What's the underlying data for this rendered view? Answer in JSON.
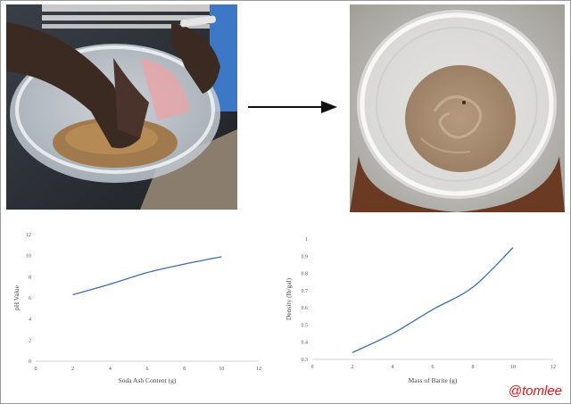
{
  "watermark": "@tomlee",
  "chart_data": [
    {
      "type": "line",
      "title": "",
      "xlabel": "Soda Ash Content (g)",
      "ylabel": "pH Value",
      "xlim": [
        0,
        12
      ],
      "ylim": [
        0,
        12
      ],
      "x_ticks": [
        0,
        2,
        4,
        6,
        8,
        10,
        12
      ],
      "y_ticks": [
        0,
        2,
        4,
        6,
        8,
        10,
        12
      ],
      "grid": false,
      "color": "#3c6fb0",
      "series": [
        {
          "x": [
            2,
            4,
            6,
            8,
            10
          ],
          "values": [
            6.3,
            7.3,
            8.4,
            9.2,
            9.9
          ]
        }
      ]
    },
    {
      "type": "line",
      "title": "",
      "xlabel": "Mass of Barite (g)",
      "ylabel": "Density (lb/gal)",
      "xlim": [
        0,
        12
      ],
      "ylim": [
        0.3,
        1.0
      ],
      "x_ticks": [
        0,
        2,
        4,
        6,
        8,
        10,
        12
      ],
      "y_ticks": [
        0.3,
        0.4,
        0.5,
        0.6,
        0.7,
        0.8,
        0.9,
        1.0
      ],
      "y_tick_labels": [
        "0.3",
        "0.4",
        "0.5",
        "0.6",
        "0.7",
        "0.8",
        "0.9",
        "1"
      ],
      "grid": false,
      "color": "#3c6fb0",
      "series": [
        {
          "x": [
            2,
            4,
            6,
            8,
            10
          ],
          "values": [
            0.34,
            0.45,
            0.59,
            0.72,
            0.95
          ]
        }
      ]
    }
  ]
}
